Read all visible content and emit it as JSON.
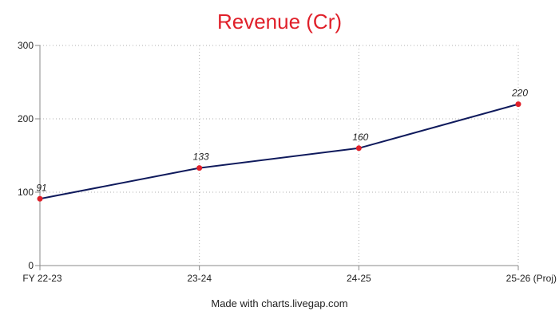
{
  "chart_data": {
    "type": "line",
    "title": "Revenue (Cr)",
    "categories": [
      "FY 22-23",
      "23-24",
      "24-25",
      "25-26 (Proj)"
    ],
    "series": [
      {
        "values": [
          91,
          133,
          160,
          220
        ]
      }
    ],
    "data_labels": [
      "91",
      "133",
      "160",
      "220"
    ],
    "y_ticks": [
      0,
      100,
      200,
      300
    ],
    "ylim": [
      0,
      300
    ],
    "grid": true,
    "legend": "none",
    "colors": {
      "line": "#0f1a5c",
      "point": "#e0202a",
      "title": "#e0202a",
      "grid": "#b0b0b0"
    }
  },
  "footer": {
    "text": "Made with charts.livegap.com"
  }
}
